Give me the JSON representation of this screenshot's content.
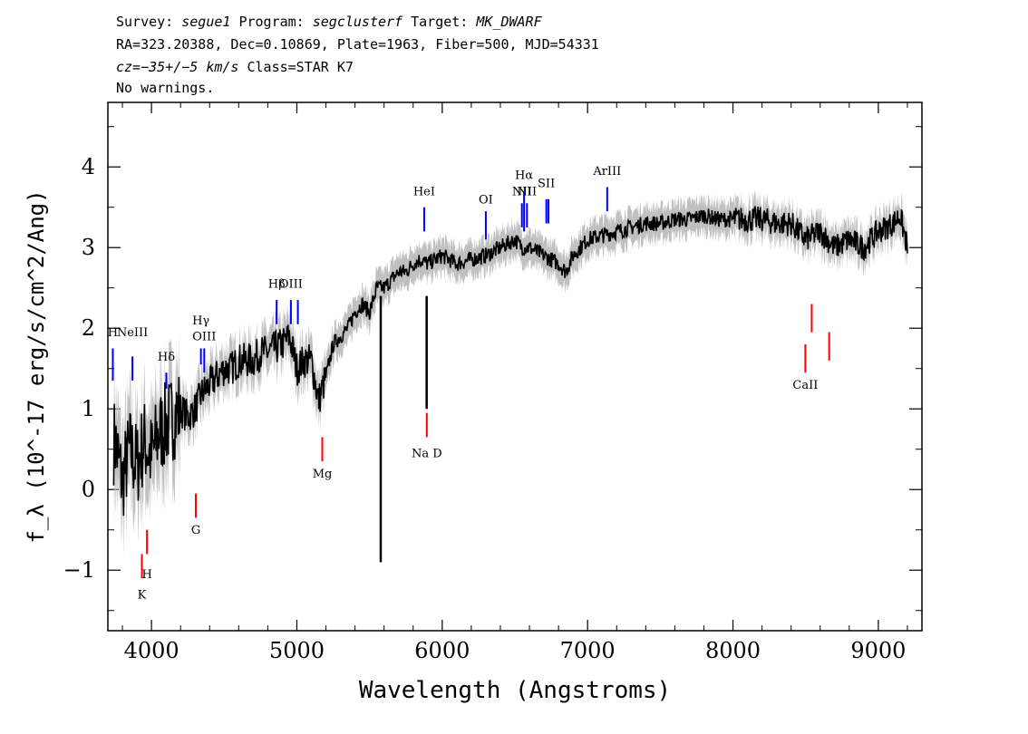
{
  "header": {
    "survey_label": "Survey:",
    "survey": "segue1",
    "program_label": "Program:",
    "program": "segclusterf",
    "target_label": "Target:",
    "target": "MK_DWARF",
    "line2": "RA=323.20388, Dec=0.10869, Plate=1963, Fiber=500, MJD=54331",
    "cz": "cz=−35+/−5 km/s",
    "class": "Class=STAR K7",
    "warnings": "No warnings."
  },
  "chart_data": {
    "type": "line",
    "xlabel": "Wavelength (Angstroms)",
    "ylabel": "f_λ (10^-17 erg/s/cm^2/Ang)",
    "xlim": [
      3700,
      9300
    ],
    "ylim": [
      -1.75,
      4.8
    ],
    "xticks": [
      4000,
      5000,
      6000,
      7000,
      8000,
      9000
    ],
    "yticks": [
      -1,
      0,
      1,
      2,
      3,
      4
    ],
    "colors": {
      "flux": "#000000",
      "error_band": "#c0c0c0",
      "emission": "#0000ff",
      "absorption": "#ff0000"
    },
    "series": [
      {
        "role": "flux",
        "x": [
          3750,
          3800,
          3850,
          3900,
          3950,
          4000,
          4050,
          4100,
          4150,
          4200,
          4250,
          4300,
          4350,
          4400,
          4450,
          4500,
          4550,
          4600,
          4650,
          4700,
          4750,
          4800,
          4850,
          4900,
          4950,
          5000,
          5050,
          5100,
          5150,
          5200,
          5250,
          5300,
          5350,
          5400,
          5450,
          5500,
          5550,
          5600,
          5650,
          5700,
          5750,
          5800,
          5850,
          5900,
          5950,
          6000,
          6100,
          6200,
          6300,
          6400,
          6500,
          6550,
          6600,
          6700,
          6800,
          6850,
          6900,
          7000,
          7100,
          7200,
          7300,
          7400,
          7500,
          7600,
          7700,
          7800,
          7900,
          8000,
          8100,
          8200,
          8300,
          8400,
          8500,
          8600,
          8700,
          8800,
          8900,
          9000,
          9100,
          9150,
          9200
        ],
        "y": [
          0.6,
          0.1,
          0.5,
          0.3,
          0.6,
          0.4,
          0.7,
          0.8,
          0.9,
          1.0,
          0.9,
          1.0,
          1.2,
          1.3,
          1.4,
          1.5,
          1.5,
          1.6,
          1.6,
          1.6,
          1.7,
          1.7,
          1.75,
          1.8,
          1.9,
          1.5,
          1.6,
          1.6,
          1.1,
          1.4,
          1.8,
          1.9,
          2.0,
          2.2,
          2.3,
          2.2,
          2.5,
          2.5,
          2.6,
          2.7,
          2.7,
          2.8,
          2.85,
          2.8,
          2.85,
          2.9,
          2.8,
          2.85,
          2.9,
          3.0,
          3.1,
          3.0,
          3.0,
          2.9,
          2.8,
          2.7,
          2.9,
          3.1,
          3.15,
          3.2,
          3.25,
          3.3,
          3.3,
          3.35,
          3.35,
          3.4,
          3.35,
          3.35,
          3.35,
          3.35,
          3.3,
          3.3,
          3.1,
          3.2,
          3.0,
          3.1,
          3.0,
          3.2,
          3.3,
          3.4,
          3.0
        ]
      }
    ],
    "features": [
      {
        "x": 5577,
        "y": -0.9,
        "kind": "sky-dip"
      },
      {
        "x": 5893,
        "y": 1.0,
        "kind": "nad-dip"
      }
    ],
    "line_labels": [
      {
        "name": "H",
        "x": 3734,
        "kind": "emission",
        "lo": 1.35,
        "hi": 1.75,
        "label_y": 1.9
      },
      {
        "name": "NeIII",
        "x": 3869,
        "kind": "emission",
        "lo": 1.35,
        "hi": 1.65,
        "label_y": 1.9
      },
      {
        "name": "Hδ",
        "x": 4102,
        "kind": "emission",
        "lo": 1.25,
        "hi": 1.45,
        "label_y": 1.6
      },
      {
        "name": "Hγ",
        "x": 4340,
        "kind": "emission",
        "lo": 1.55,
        "hi": 1.75,
        "label_y": 2.05
      },
      {
        "name": "OIII",
        "x": 4363,
        "kind": "emission",
        "lo": 1.45,
        "hi": 1.75,
        "label_y": 1.85
      },
      {
        "name": "Hβ",
        "x": 4861,
        "kind": "emission",
        "lo": 2.05,
        "hi": 2.35,
        "label_y": 2.5
      },
      {
        "name": "OIII",
        "x": 4959,
        "kind": "emission",
        "lo": 2.05,
        "hi": 2.35,
        "label_y": 2.5
      },
      {
        "name": "",
        "x": 5007,
        "kind": "emission",
        "lo": 2.05,
        "hi": 2.35,
        "label_y": null
      },
      {
        "name": "HeI",
        "x": 5876,
        "kind": "emission",
        "lo": 3.2,
        "hi": 3.5,
        "label_y": 3.65
      },
      {
        "name": "OI",
        "x": 6300,
        "kind": "emission",
        "lo": 3.1,
        "hi": 3.45,
        "label_y": 3.55
      },
      {
        "name": "NII",
        "x": 6548,
        "kind": "emission",
        "lo": 3.25,
        "hi": 3.55,
        "label_y": 3.65
      },
      {
        "name": "Hα",
        "x": 6563,
        "kind": "emission",
        "lo": 3.2,
        "hi": 3.7,
        "label_y": 3.85
      },
      {
        "name": "NII",
        "x": 6583,
        "kind": "emission",
        "lo": 3.25,
        "hi": 3.55,
        "label_y": 3.65
      },
      {
        "name": "SII",
        "x": 6716,
        "kind": "emission",
        "lo": 3.3,
        "hi": 3.6,
        "label_y": 3.75
      },
      {
        "name": "",
        "x": 6731,
        "kind": "emission",
        "lo": 3.3,
        "hi": 3.6,
        "label_y": null
      },
      {
        "name": "ArIII",
        "x": 7135,
        "kind": "emission",
        "lo": 3.45,
        "hi": 3.75,
        "label_y": 3.9
      },
      {
        "name": "K",
        "x": 3934,
        "kind": "absorption",
        "lo": -1.1,
        "hi": -0.8,
        "label_y": -1.35
      },
      {
        "name": "H",
        "x": 3969,
        "kind": "absorption",
        "lo": -0.8,
        "hi": -0.5,
        "label_y": -1.1
      },
      {
        "name": "G",
        "x": 4305,
        "kind": "absorption",
        "lo": -0.35,
        "hi": -0.05,
        "label_y": -0.55
      },
      {
        "name": "Mg",
        "x": 5175,
        "kind": "absorption",
        "lo": 0.35,
        "hi": 0.65,
        "label_y": 0.15
      },
      {
        "name": "Na D",
        "x": 5894,
        "kind": "absorption",
        "lo": 0.65,
        "hi": 0.95,
        "label_y": 0.4
      },
      {
        "name": "CaII",
        "x": 8498,
        "kind": "absorption",
        "lo": 1.45,
        "hi": 1.8,
        "label_y": 1.25
      },
      {
        "name": "",
        "x": 8542,
        "kind": "absorption",
        "lo": 1.95,
        "hi": 2.3,
        "label_y": null
      },
      {
        "name": "",
        "x": 8662,
        "kind": "absorption",
        "lo": 1.6,
        "hi": 1.95,
        "label_y": null
      }
    ]
  }
}
